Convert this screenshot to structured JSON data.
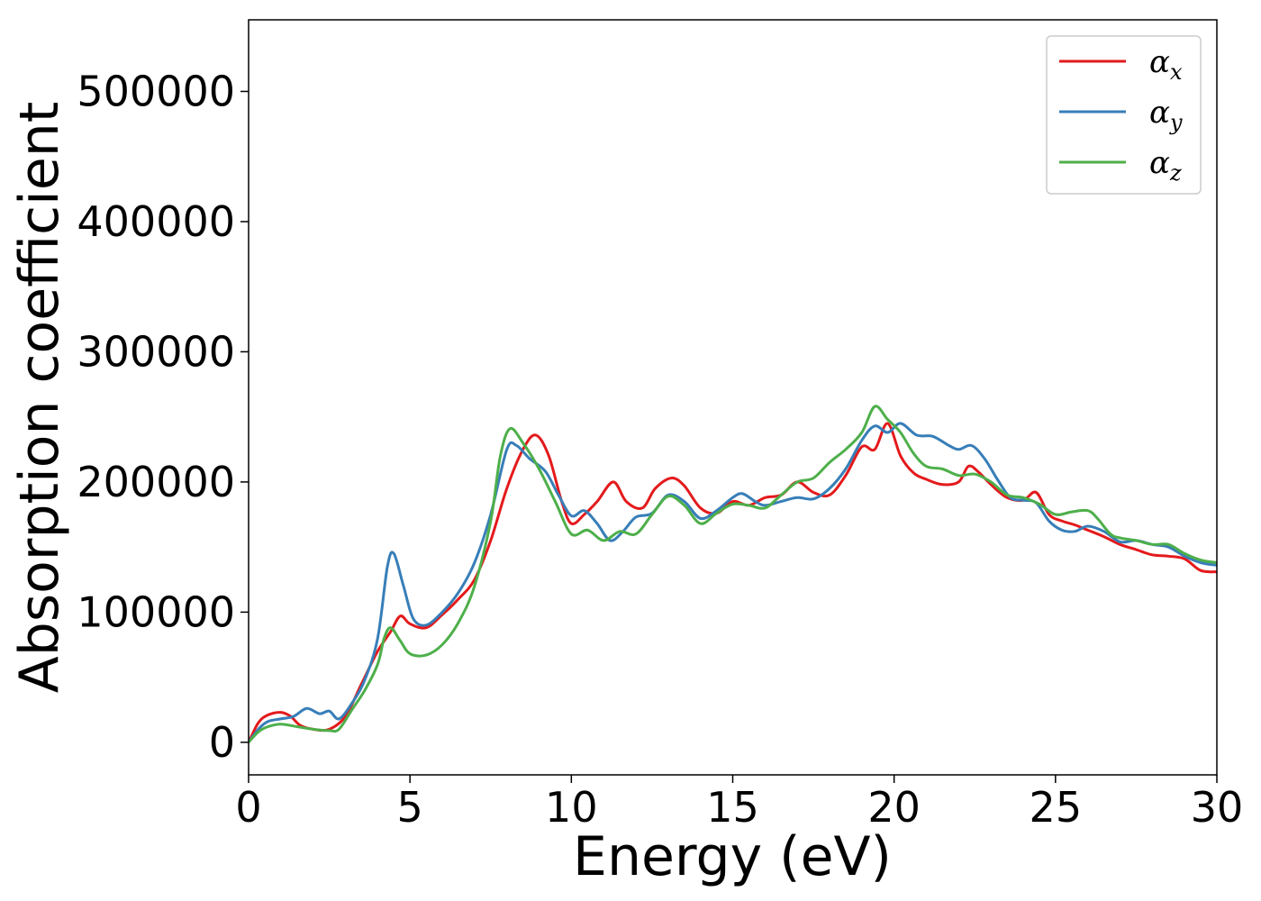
{
  "chart_data": {
    "type": "line",
    "xlabel": "Energy (eV)",
    "ylabel": "Absorption coefficient",
    "xlim": [
      0,
      30
    ],
    "ylim": [
      -25000,
      555000
    ],
    "xticks": [
      0,
      5,
      10,
      15,
      20,
      25,
      30
    ],
    "yticks": [
      0,
      100000,
      200000,
      300000,
      400000,
      500000
    ],
    "grid": false,
    "legend_position": "top-right",
    "series": [
      {
        "name": "α",
        "subscript": "x",
        "color": "#e41a1c",
        "points": [
          [
            0,
            0
          ],
          [
            0.3,
            15000
          ],
          [
            0.6,
            21000
          ],
          [
            1.0,
            23000
          ],
          [
            1.3,
            20000
          ],
          [
            1.6,
            13000
          ],
          [
            2.0,
            10000
          ],
          [
            2.5,
            10000
          ],
          [
            3.0,
            20000
          ],
          [
            3.5,
            45000
          ],
          [
            4.0,
            70000
          ],
          [
            4.4,
            85000
          ],
          [
            4.7,
            97000
          ],
          [
            5.0,
            91000
          ],
          [
            5.5,
            88000
          ],
          [
            6.0,
            98000
          ],
          [
            6.5,
            110000
          ],
          [
            7.0,
            125000
          ],
          [
            7.5,
            155000
          ],
          [
            8.0,
            195000
          ],
          [
            8.5,
            225000
          ],
          [
            8.9,
            236000
          ],
          [
            9.3,
            220000
          ],
          [
            9.7,
            185000
          ],
          [
            10.0,
            168000
          ],
          [
            10.4,
            175000
          ],
          [
            10.8,
            185000
          ],
          [
            11.3,
            200000
          ],
          [
            11.7,
            185000
          ],
          [
            12.2,
            180000
          ],
          [
            12.6,
            195000
          ],
          [
            13.1,
            203000
          ],
          [
            13.5,
            197000
          ],
          [
            14.0,
            180000
          ],
          [
            14.5,
            176000
          ],
          [
            15.0,
            185000
          ],
          [
            15.5,
            182000
          ],
          [
            16.0,
            188000
          ],
          [
            16.5,
            190000
          ],
          [
            17.0,
            200000
          ],
          [
            17.5,
            192000
          ],
          [
            18.0,
            190000
          ],
          [
            18.5,
            205000
          ],
          [
            19.0,
            227000
          ],
          [
            19.4,
            225000
          ],
          [
            19.8,
            245000
          ],
          [
            20.2,
            220000
          ],
          [
            20.6,
            207000
          ],
          [
            21.0,
            202000
          ],
          [
            21.5,
            198000
          ],
          [
            22.0,
            200000
          ],
          [
            22.3,
            212000
          ],
          [
            22.6,
            208000
          ],
          [
            23.0,
            198000
          ],
          [
            23.5,
            188000
          ],
          [
            24.0,
            186000
          ],
          [
            24.4,
            192000
          ],
          [
            24.8,
            175000
          ],
          [
            25.2,
            170000
          ],
          [
            25.6,
            167000
          ],
          [
            26.0,
            163000
          ],
          [
            26.5,
            158000
          ],
          [
            27.0,
            152000
          ],
          [
            27.5,
            148000
          ],
          [
            28.0,
            144000
          ],
          [
            28.5,
            143000
          ],
          [
            29.0,
            141000
          ],
          [
            29.5,
            132000
          ],
          [
            30.0,
            131000
          ]
        ]
      },
      {
        "name": "α",
        "subscript": "y",
        "color": "#377eb8",
        "points": [
          [
            0,
            0
          ],
          [
            0.3,
            10000
          ],
          [
            0.6,
            16000
          ],
          [
            1.0,
            18000
          ],
          [
            1.4,
            20000
          ],
          [
            1.8,
            26000
          ],
          [
            2.2,
            22000
          ],
          [
            2.5,
            24000
          ],
          [
            2.8,
            18000
          ],
          [
            3.2,
            30000
          ],
          [
            3.6,
            48000
          ],
          [
            4.0,
            80000
          ],
          [
            4.3,
            135000
          ],
          [
            4.5,
            145000
          ],
          [
            4.8,
            120000
          ],
          [
            5.1,
            95000
          ],
          [
            5.5,
            90000
          ],
          [
            6.0,
            100000
          ],
          [
            6.5,
            115000
          ],
          [
            7.0,
            138000
          ],
          [
            7.5,
            175000
          ],
          [
            8.0,
            225000
          ],
          [
            8.3,
            228000
          ],
          [
            8.7,
            218000
          ],
          [
            9.2,
            208000
          ],
          [
            9.6,
            190000
          ],
          [
            10.0,
            174000
          ],
          [
            10.4,
            178000
          ],
          [
            10.8,
            168000
          ],
          [
            11.2,
            155000
          ],
          [
            11.6,
            162000
          ],
          [
            12.0,
            173000
          ],
          [
            12.5,
            176000
          ],
          [
            13.0,
            190000
          ],
          [
            13.5,
            185000
          ],
          [
            14.0,
            172000
          ],
          [
            14.5,
            178000
          ],
          [
            15.0,
            188000
          ],
          [
            15.3,
            191000
          ],
          [
            15.7,
            185000
          ],
          [
            16.0,
            182000
          ],
          [
            16.5,
            185000
          ],
          [
            17.0,
            188000
          ],
          [
            17.5,
            187000
          ],
          [
            18.0,
            195000
          ],
          [
            18.5,
            210000
          ],
          [
            19.0,
            232000
          ],
          [
            19.4,
            243000
          ],
          [
            19.8,
            238000
          ],
          [
            20.2,
            245000
          ],
          [
            20.7,
            236000
          ],
          [
            21.2,
            235000
          ],
          [
            21.7,
            228000
          ],
          [
            22.0,
            225000
          ],
          [
            22.4,
            228000
          ],
          [
            22.8,
            218000
          ],
          [
            23.2,
            202000
          ],
          [
            23.6,
            188000
          ],
          [
            24.0,
            186000
          ],
          [
            24.4,
            184000
          ],
          [
            24.8,
            170000
          ],
          [
            25.2,
            163000
          ],
          [
            25.6,
            162000
          ],
          [
            26.0,
            166000
          ],
          [
            26.5,
            162000
          ],
          [
            27.0,
            154000
          ],
          [
            27.5,
            155000
          ],
          [
            28.0,
            152000
          ],
          [
            28.5,
            150000
          ],
          [
            29.0,
            143000
          ],
          [
            29.5,
            138000
          ],
          [
            30.0,
            136000
          ]
        ]
      },
      {
        "name": "α",
        "subscript": "z",
        "color": "#4daf4a",
        "points": [
          [
            0,
            0
          ],
          [
            0.3,
            8000
          ],
          [
            0.6,
            12000
          ],
          [
            1.0,
            14000
          ],
          [
            1.5,
            12000
          ],
          [
            2.0,
            10000
          ],
          [
            2.5,
            9000
          ],
          [
            2.8,
            10000
          ],
          [
            3.2,
            25000
          ],
          [
            3.6,
            40000
          ],
          [
            4.0,
            60000
          ],
          [
            4.2,
            80000
          ],
          [
            4.4,
            88000
          ],
          [
            4.7,
            78000
          ],
          [
            5.0,
            68000
          ],
          [
            5.5,
            67000
          ],
          [
            6.0,
            75000
          ],
          [
            6.5,
            92000
          ],
          [
            7.0,
            120000
          ],
          [
            7.5,
            170000
          ],
          [
            7.8,
            220000
          ],
          [
            8.1,
            241000
          ],
          [
            8.5,
            230000
          ],
          [
            9.0,
            210000
          ],
          [
            9.5,
            185000
          ],
          [
            10.0,
            160000
          ],
          [
            10.5,
            163000
          ],
          [
            11.0,
            155000
          ],
          [
            11.5,
            162000
          ],
          [
            12.0,
            160000
          ],
          [
            12.5,
            175000
          ],
          [
            13.0,
            189000
          ],
          [
            13.5,
            182000
          ],
          [
            14.0,
            168000
          ],
          [
            14.5,
            176000
          ],
          [
            15.0,
            183000
          ],
          [
            15.5,
            182000
          ],
          [
            16.0,
            180000
          ],
          [
            16.5,
            190000
          ],
          [
            17.0,
            200000
          ],
          [
            17.5,
            203000
          ],
          [
            18.0,
            215000
          ],
          [
            18.5,
            225000
          ],
          [
            19.0,
            238000
          ],
          [
            19.4,
            258000
          ],
          [
            19.8,
            248000
          ],
          [
            20.2,
            238000
          ],
          [
            20.6,
            222000
          ],
          [
            21.0,
            212000
          ],
          [
            21.5,
            210000
          ],
          [
            22.0,
            205000
          ],
          [
            22.5,
            206000
          ],
          [
            23.0,
            200000
          ],
          [
            23.5,
            190000
          ],
          [
            24.0,
            188000
          ],
          [
            24.5,
            183000
          ],
          [
            25.0,
            175000
          ],
          [
            25.5,
            177000
          ],
          [
            26.0,
            178000
          ],
          [
            26.3,
            172000
          ],
          [
            26.7,
            160000
          ],
          [
            27.0,
            157000
          ],
          [
            27.5,
            155000
          ],
          [
            28.0,
            152000
          ],
          [
            28.5,
            152000
          ],
          [
            29.0,
            145000
          ],
          [
            29.5,
            140000
          ],
          [
            30.0,
            138000
          ]
        ]
      }
    ]
  }
}
